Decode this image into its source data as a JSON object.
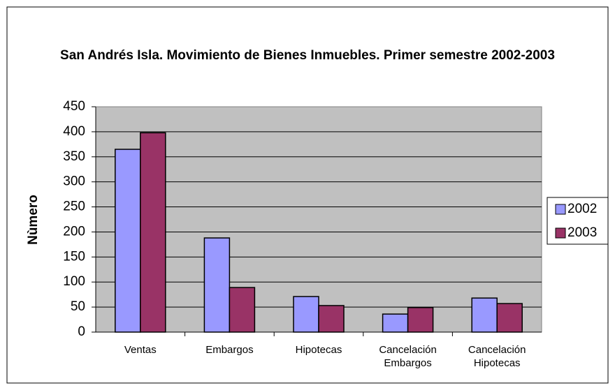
{
  "chart_data": {
    "type": "bar",
    "title": "San Andrés Isla. Movimiento de Bienes Inmuebles. Primer semestre 2002-2003",
    "y_label": "Nùmero",
    "categories": [
      "Ventas",
      "Embargos",
      "Hipotecas",
      "Cancelación Embargos",
      "Cancelación Hipotecas"
    ],
    "series": [
      {
        "name": "2002",
        "color": "#9999ff",
        "values": [
          365,
          188,
          71,
          36,
          68
        ]
      },
      {
        "name": "2003",
        "color": "#993366",
        "values": [
          398,
          89,
          53,
          49,
          57
        ]
      }
    ],
    "ylim": [
      0,
      450
    ],
    "yticks": [
      0,
      50,
      100,
      150,
      200,
      250,
      300,
      350,
      400,
      450
    ],
    "grid": true,
    "legend": "right"
  }
}
